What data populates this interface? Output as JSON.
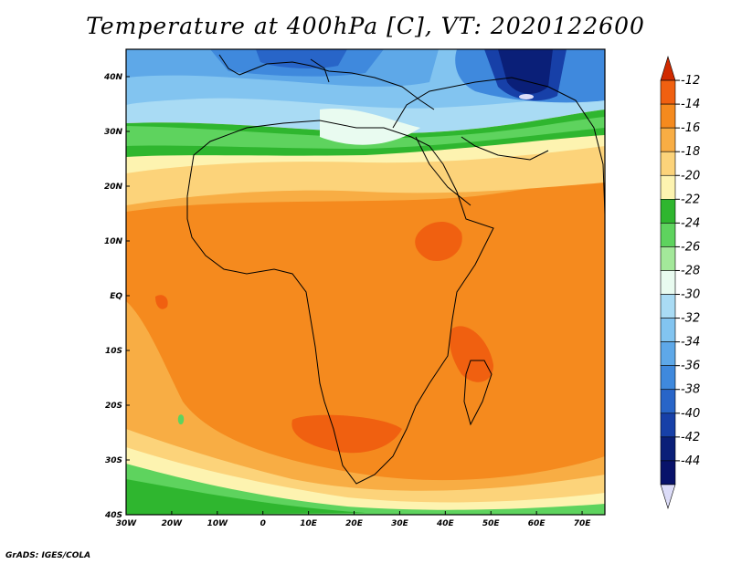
{
  "title": "Temperature at 400hPa [C], VT: 2020122600",
  "credit": "GrADS: IGES/COLA",
  "map": {
    "lon_range": [
      -30,
      75
    ],
    "lat_range": [
      -40,
      45
    ],
    "lon_ticks": [
      "30W",
      "20W",
      "10W",
      "0",
      "10E",
      "20E",
      "30E",
      "40E",
      "50E",
      "60E",
      "70E"
    ],
    "lat_ticks": [
      "40N",
      "30N",
      "20N",
      "10N",
      "EQ",
      "10S",
      "20S",
      "30S",
      "40S"
    ]
  },
  "colorbar": {
    "labels": [
      "-12",
      "-14",
      "-16",
      "-18",
      "-20",
      "-22",
      "-24",
      "-26",
      "-28",
      "-30",
      "-32",
      "-34",
      "-36",
      "-38",
      "-40",
      "-42",
      "-44"
    ],
    "colors": [
      "#d02a00",
      "#f06010",
      "#f58a1e",
      "#f8ad44",
      "#fcd37a",
      "#fdf3b0",
      "#2fb62f",
      "#5ed35e",
      "#a3e89a",
      "#e9fbf0",
      "#a9dbf4",
      "#82c4f0",
      "#5ea8e8",
      "#3f89dd",
      "#2865c8",
      "#1740a8",
      "#0a1f78",
      "#08126a",
      "#dcdcf8"
    ]
  }
}
